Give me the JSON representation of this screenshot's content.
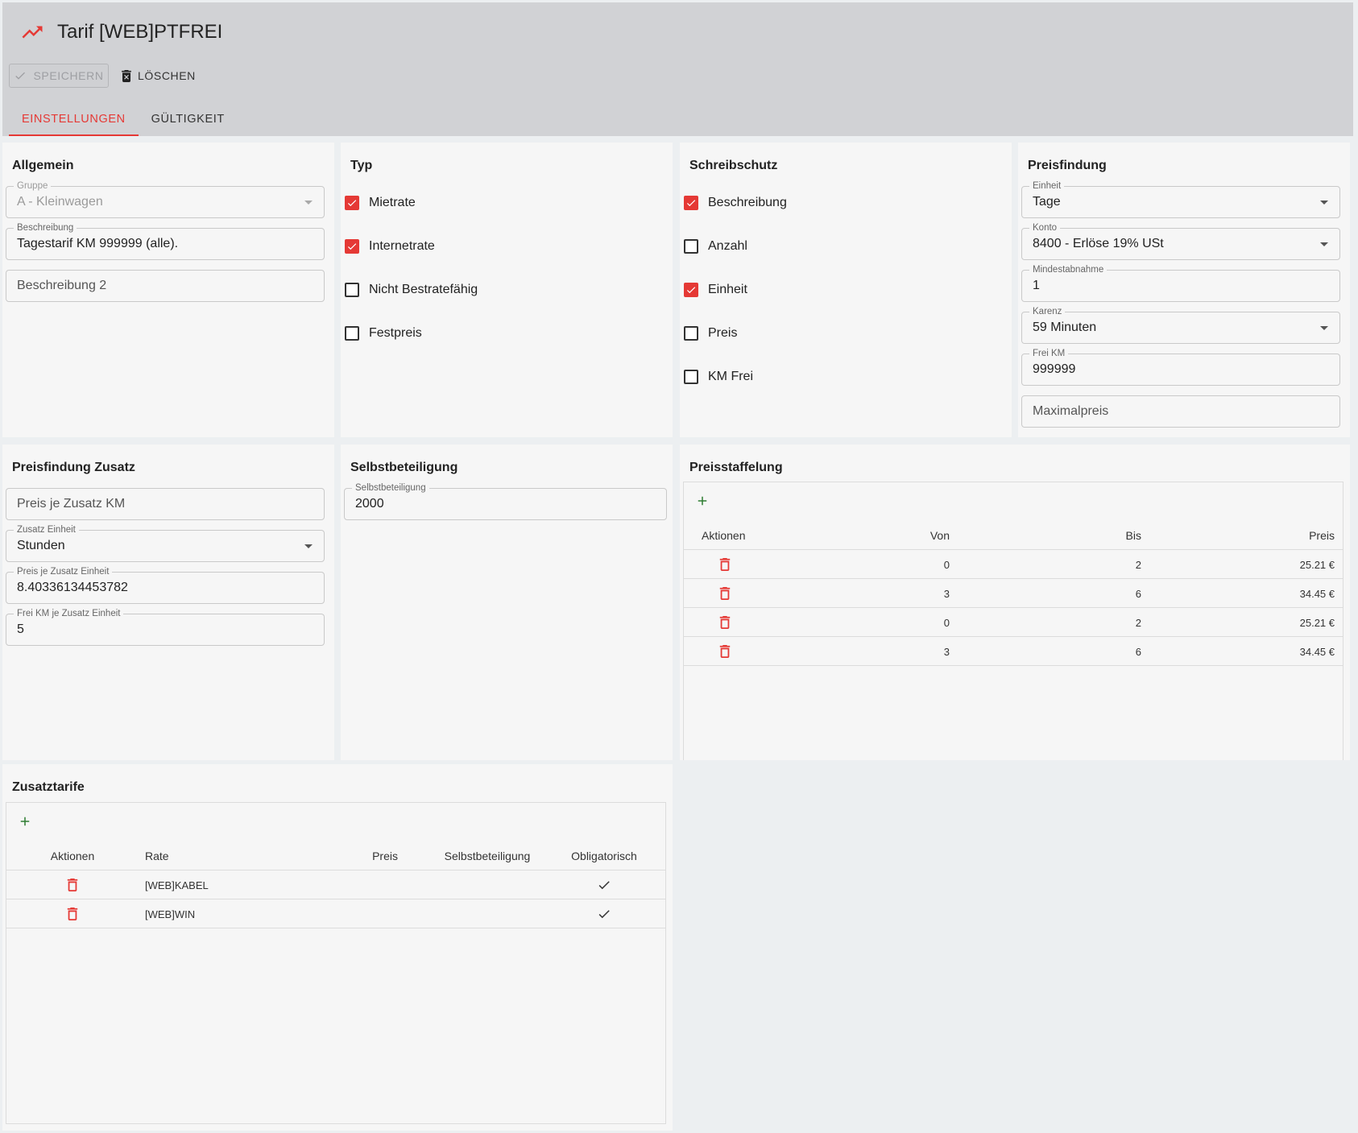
{
  "header": {
    "title": "Tarif [WEB]PTFREI",
    "save_label": "SPEICHERN",
    "delete_label": "LÖSCHEN",
    "tabs": [
      {
        "label": "EINSTELLUNGEN",
        "active": true
      },
      {
        "label": "GÜLTIGKEIT",
        "active": false
      }
    ]
  },
  "colors": {
    "accent": "#e53935",
    "add": "#2e7d32"
  },
  "allgemein": {
    "title": "Allgemein",
    "gruppe": {
      "label": "Gruppe",
      "value": "A - Kleinwagen",
      "disabled": true
    },
    "beschreibung": {
      "label": "Beschreibung",
      "value": "Tagestarif KM 999999 (alle)."
    },
    "beschreibung2": {
      "placeholder": "Beschreibung 2"
    }
  },
  "typ": {
    "title": "Typ",
    "items": [
      {
        "label": "Mietrate",
        "checked": true
      },
      {
        "label": "Internetrate",
        "checked": true
      },
      {
        "label": "Nicht Bestratefähig",
        "checked": false
      },
      {
        "label": "Festpreis",
        "checked": false
      }
    ]
  },
  "schreibschutz": {
    "title": "Schreibschutz",
    "items": [
      {
        "label": "Beschreibung",
        "checked": true
      },
      {
        "label": "Anzahl",
        "checked": false
      },
      {
        "label": "Einheit",
        "checked": true
      },
      {
        "label": "Preis",
        "checked": false
      },
      {
        "label": "KM Frei",
        "checked": false
      }
    ]
  },
  "preisfindung": {
    "title": "Preisfindung",
    "einheit": {
      "label": "Einheit",
      "value": "Tage"
    },
    "konto": {
      "label": "Konto",
      "value": "8400 - Erlöse 19% USt"
    },
    "mindestabnahme": {
      "label": "Mindestabnahme",
      "value": "1"
    },
    "karenz": {
      "label": "Karenz",
      "value": "59 Minuten"
    },
    "frei_km": {
      "label": "Frei KM",
      "value": "999999"
    },
    "maximalpreis": {
      "placeholder": "Maximalpreis"
    }
  },
  "preisfindung_zusatz": {
    "title": "Preisfindung Zusatz",
    "preis_je_zusatz_km": {
      "placeholder": "Preis je Zusatz KM"
    },
    "zusatz_einheit": {
      "label": "Zusatz Einheit",
      "value": "Stunden"
    },
    "preis_je_zusatz_einheit": {
      "label": "Preis je Zusatz Einheit",
      "value": "8.40336134453782"
    },
    "frei_km_je_zusatz_einheit": {
      "label": "Frei KM je Zusatz Einheit",
      "value": "5"
    }
  },
  "selbstbeteiligung": {
    "title": "Selbstbeteiligung",
    "field": {
      "label": "Selbstbeteiligung",
      "value": "2000"
    }
  },
  "preisstaffelung": {
    "title": "Preisstaffelung",
    "columns": [
      "Aktionen",
      "Von",
      "Bis",
      "Preis"
    ],
    "rows": [
      {
        "von": "0",
        "bis": "2",
        "preis": "25.21 €"
      },
      {
        "von": "3",
        "bis": "6",
        "preis": "34.45 €"
      },
      {
        "von": "0",
        "bis": "2",
        "preis": "25.21 €"
      },
      {
        "von": "3",
        "bis": "6",
        "preis": "34.45 €"
      }
    ]
  },
  "zusatztarife": {
    "title": "Zusatztarife",
    "columns": [
      "Aktionen",
      "Rate",
      "Preis",
      "Selbstbeteiligung",
      "Obligatorisch"
    ],
    "rows": [
      {
        "rate": "[WEB]KABEL",
        "preis": "",
        "selbstbeteiligung": "",
        "obligatorisch": true
      },
      {
        "rate": "[WEB]WIN",
        "preis": "",
        "selbstbeteiligung": "",
        "obligatorisch": true
      }
    ]
  }
}
